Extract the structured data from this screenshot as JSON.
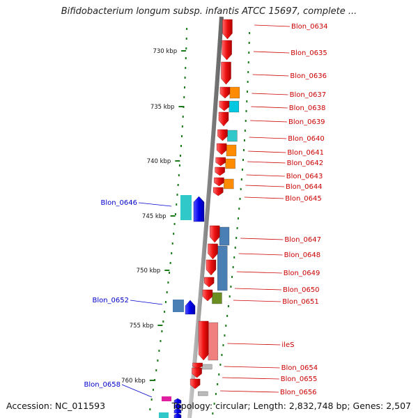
{
  "title": "Bifidobacterium longum subsp. infantis ATCC 15697, complete ...",
  "footer": {
    "accession": "Accession: NC_011593",
    "summary": "Topology: circular; Length: 2,832,748 bp; Genes: 2,507"
  },
  "ticks": [
    "730 kbp",
    "735 kbp",
    "740 kbp",
    "745 kbp",
    "750 kbp",
    "755 kbp",
    "760 kbp"
  ],
  "genes_right": [
    "Blon_0634",
    "Blon_0635",
    "Blon_0636",
    "Blon_0637",
    "Blon_0638",
    "Blon_0639",
    "Blon_0640",
    "Blon_0641",
    "Blon_0642",
    "Blon_0643",
    "Blon_0644",
    "Blon_0645",
    "Blon_0647",
    "Blon_0648",
    "Blon_0649",
    "Blon_0650",
    "Blon_0651",
    "ileS",
    "Blon_0654",
    "Blon_0655",
    "Blon_0656"
  ],
  "genes_left": [
    "Blon_0646",
    "Blon_0652",
    "Blon_0658"
  ],
  "colors": {
    "forward_gene": "#ee1111",
    "reverse_gene": "#0000ee",
    "backbone": "#8a8a8a",
    "tick": "#1a7a1a",
    "label_right": "#cc0000",
    "label_left": "#0000cc",
    "cog_orange": "#ff8c00",
    "cog_cyan": "#00c8e0",
    "cog_steel": "#4a7fb5",
    "cog_teal": "#30c8c8",
    "cog_pink": "#f08080",
    "cog_grey": "#bbbbbb",
    "cog_magenta": "#e020a0",
    "cog_olive": "#6b8e23"
  }
}
